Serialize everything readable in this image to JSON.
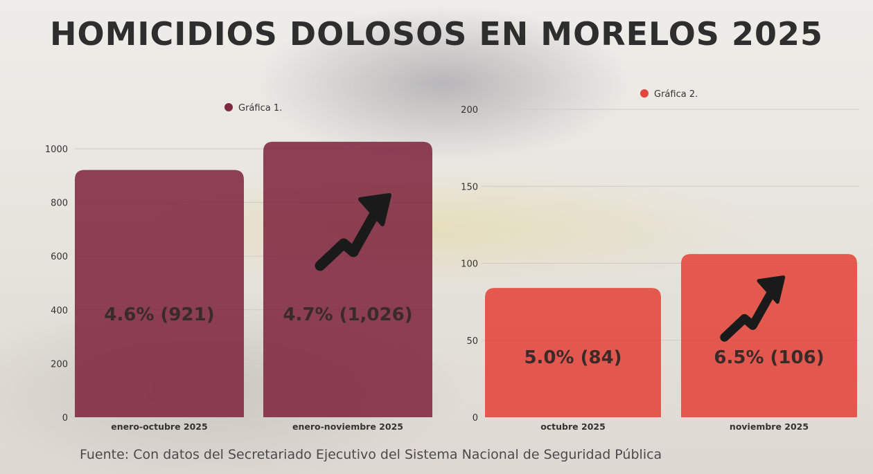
{
  "title": "HOMICIDIOS DOLOSOS EN MORELOS 2025",
  "source": "Fuente: Con datos del Secretariado Ejecutivo del Sistema Nacional de Seguridad Pública",
  "colors": {
    "chart1": "#7f2840",
    "chart2": "#e2463a",
    "arrow": "#1a1a1a",
    "grid": "#cfcac5",
    "text": "#333333"
  },
  "chart_data": [
    {
      "type": "bar",
      "legend": "Gráfica 1.",
      "categories": [
        "enero-octubre 2025",
        "enero-noviembre 2025"
      ],
      "values": [
        921,
        1026
      ],
      "data_labels": [
        "4.6% (921)",
        "4.7% (1,026)"
      ],
      "yticks": [
        0,
        200,
        400,
        600,
        800,
        1000
      ],
      "ylim": [
        0,
        1000
      ],
      "trend_icon": "trend-up-arrow-icon",
      "grid": true
    },
    {
      "type": "bar",
      "legend": "Gráfica 2.",
      "categories": [
        "octubre 2025",
        "noviembre 2025"
      ],
      "values": [
        84,
        106
      ],
      "data_labels": [
        "5.0% (84)",
        "6.5% (106)"
      ],
      "yticks": [
        0,
        50,
        100,
        150,
        200
      ],
      "ylim": [
        0,
        200
      ],
      "trend_icon": "trend-up-arrow-icon",
      "grid": true
    }
  ]
}
